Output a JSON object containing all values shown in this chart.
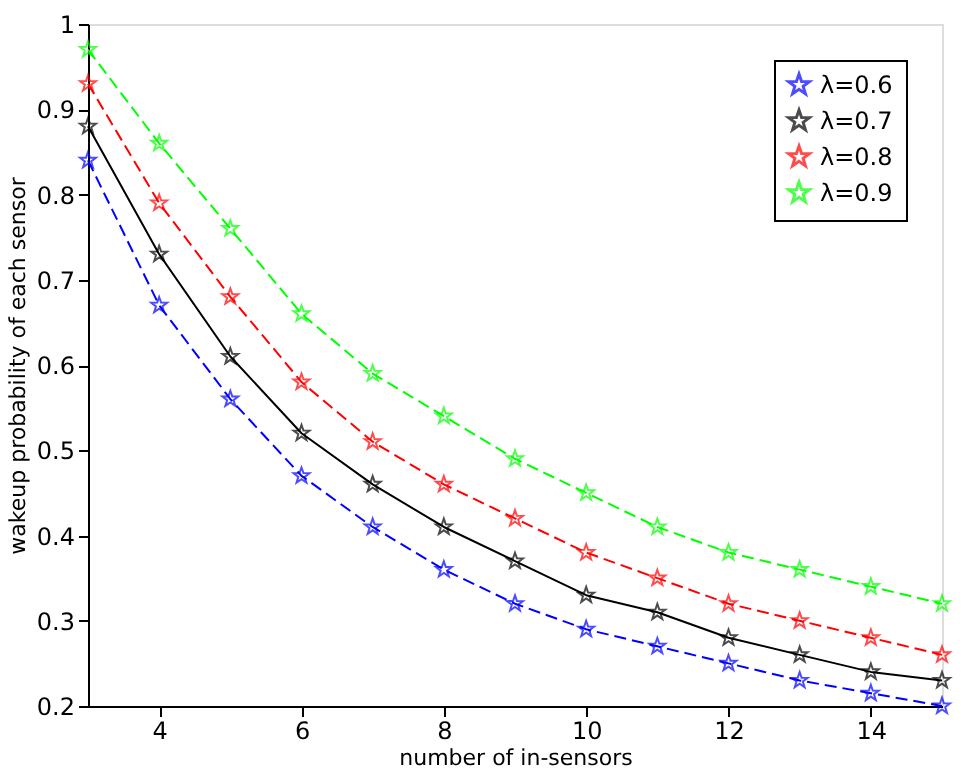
{
  "chart_data": {
    "type": "line",
    "xlabel": "number of in-sensors",
    "ylabel": "wakeup probability of each sensor",
    "x": [
      3,
      4,
      5,
      6,
      7,
      8,
      9,
      10,
      11,
      12,
      13,
      14,
      15
    ],
    "series": [
      {
        "name": "λ=0.6",
        "color": "#0000ff",
        "line_style": "dashed",
        "values": [
          0.84,
          0.67,
          0.56,
          0.47,
          0.41,
          0.36,
          0.32,
          0.29,
          0.27,
          0.25,
          0.23,
          0.215,
          0.2
        ]
      },
      {
        "name": "λ=0.7",
        "color": "#000000",
        "line_style": "solid",
        "values": [
          0.88,
          0.73,
          0.61,
          0.52,
          0.46,
          0.41,
          0.37,
          0.33,
          0.31,
          0.28,
          0.26,
          0.24,
          0.23
        ]
      },
      {
        "name": "λ=0.8",
        "color": "#ff0000",
        "line_style": "dashed",
        "values": [
          0.93,
          0.79,
          0.68,
          0.58,
          0.51,
          0.46,
          0.42,
          0.38,
          0.35,
          0.32,
          0.3,
          0.28,
          0.26
        ]
      },
      {
        "name": "λ=0.9",
        "color": "#00ff00",
        "line_style": "dashed",
        "values": [
          0.97,
          0.86,
          0.76,
          0.66,
          0.59,
          0.54,
          0.49,
          0.45,
          0.41,
          0.38,
          0.36,
          0.34,
          0.32
        ]
      }
    ],
    "xlim": [
      3,
      15
    ],
    "xticks": [
      4,
      6,
      8,
      10,
      12,
      14
    ],
    "ylim": [
      0.2,
      1
    ],
    "yticks": [
      0.2,
      0.3,
      0.4,
      0.5,
      0.6,
      0.7,
      0.8,
      0.9,
      1
    ],
    "grid": false,
    "legend": "top right",
    "marker": "star"
  }
}
